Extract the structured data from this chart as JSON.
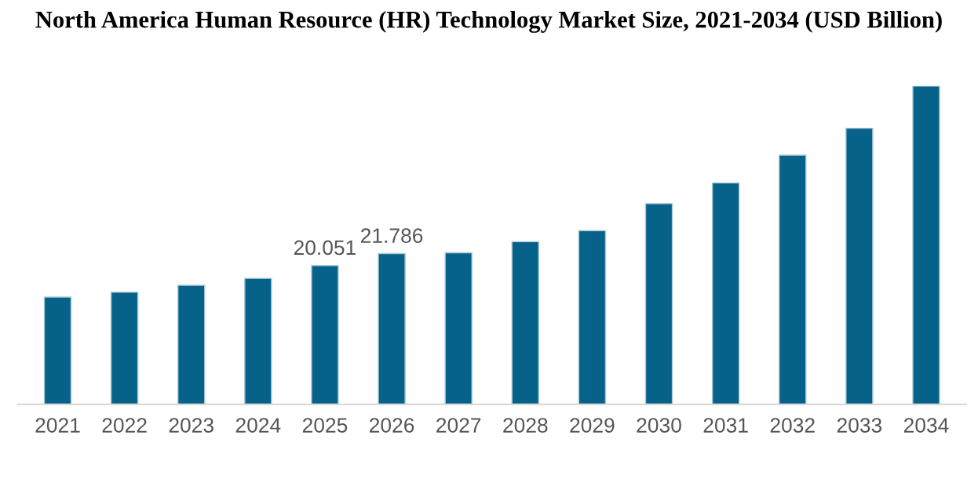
{
  "chart_data": {
    "type": "bar",
    "title": "North America Human Resource (HR) Technology Market Size, 2021-2034 (USD Billion)",
    "categories": [
      "2021",
      "2022",
      "2023",
      "2024",
      "2025",
      "2026",
      "2027",
      "2028",
      "2029",
      "2030",
      "2031",
      "2032",
      "2033",
      "2034"
    ],
    "values": [
      15.5,
      16.2,
      17.2,
      18.2,
      20.051,
      21.786,
      21.9,
      23.5,
      25.1,
      29.0,
      32.0,
      36.0,
      39.9,
      46.0
    ],
    "value_labels": [
      null,
      null,
      null,
      null,
      "20.051",
      "21.786",
      null,
      null,
      null,
      null,
      null,
      null,
      null,
      null
    ],
    "color": "#07628a",
    "ylim": [
      0,
      46
    ],
    "tick_labels": "x",
    "grid": false,
    "legend": false
  }
}
